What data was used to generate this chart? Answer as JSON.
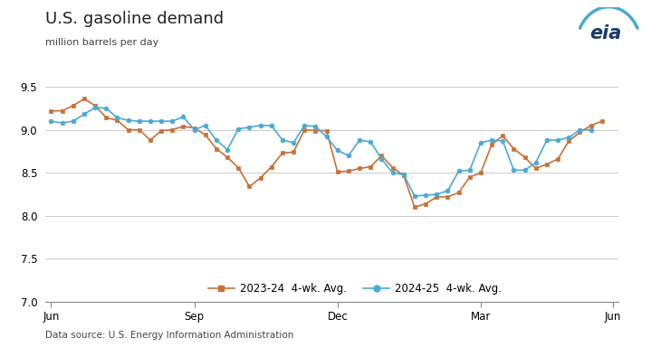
{
  "title": "U.S. gasoline demand",
  "subtitle": "million barrels per day",
  "source": "Data source: U.S. Energy Information Administration",
  "ylim": [
    7.0,
    9.5
  ],
  "yticks": [
    7.0,
    7.5,
    8.0,
    8.5,
    9.0,
    9.5
  ],
  "background_color": "#ffffff",
  "grid_color": "#cccccc",
  "series1_color": "#c87137",
  "series2_color": "#4baad4",
  "series1_label": "2023-24  4-wk. Avg.",
  "series2_label": "2024-25  4-wk. Avg.",
  "x_tick_labels": [
    "Jun",
    "Sep",
    "Dec",
    "Mar",
    "Jun"
  ],
  "xtick_pos": [
    0,
    13,
    26,
    39,
    51
  ],
  "xlim": [
    -0.5,
    51.5
  ],
  "series1_x": [
    0,
    1,
    2,
    3,
    4,
    5,
    6,
    7,
    8,
    9,
    10,
    11,
    12,
    13,
    14,
    15,
    16,
    17,
    18,
    19,
    20,
    21,
    22,
    23,
    24,
    25,
    26,
    27,
    28,
    29,
    30,
    31,
    32,
    33,
    34,
    35,
    36,
    37,
    38,
    39,
    40,
    41,
    42,
    43,
    44,
    45,
    46,
    47,
    48,
    49,
    50
  ],
  "series1_y": [
    9.22,
    9.22,
    9.28,
    9.36,
    9.28,
    9.14,
    9.11,
    9.0,
    9.0,
    8.88,
    8.99,
    9.0,
    9.04,
    9.02,
    8.94,
    8.78,
    8.68,
    8.56,
    8.34,
    8.44,
    8.57,
    8.73,
    8.74,
    9.0,
    8.99,
    8.99,
    8.51,
    8.52,
    8.55,
    8.57,
    8.7,
    8.56,
    8.47,
    8.1,
    8.14,
    8.22,
    8.22,
    8.27,
    8.45,
    8.5,
    8.83,
    8.93,
    8.78,
    8.68,
    8.55,
    8.6,
    8.66,
    8.87,
    8.97,
    9.05,
    9.1
  ],
  "series2_x": [
    0,
    1,
    2,
    3,
    4,
    5,
    6,
    7,
    8,
    9,
    10,
    11,
    12,
    13,
    14,
    15,
    16,
    17,
    18,
    19,
    20,
    21,
    22,
    23,
    24,
    25,
    26,
    27,
    28,
    29,
    30,
    31,
    32,
    33,
    34,
    35,
    36,
    37,
    38,
    39,
    40,
    41,
    42,
    43,
    44,
    45,
    46,
    47,
    48,
    49
  ],
  "series2_y": [
    9.1,
    9.08,
    9.1,
    9.18,
    9.26,
    9.25,
    9.14,
    9.11,
    9.1,
    9.1,
    9.1,
    9.1,
    9.15,
    9.0,
    9.05,
    8.88,
    8.77,
    9.01,
    9.03,
    9.05,
    9.05,
    8.88,
    8.85,
    9.05,
    9.04,
    8.92,
    8.76,
    8.7,
    8.88,
    8.86,
    8.66,
    8.5,
    8.48,
    8.23,
    8.24,
    8.25,
    8.29,
    8.52,
    8.53,
    8.85,
    8.88,
    8.87,
    8.53,
    8.53,
    8.62,
    8.88,
    8.88,
    8.91,
    9.0,
    9.0
  ]
}
